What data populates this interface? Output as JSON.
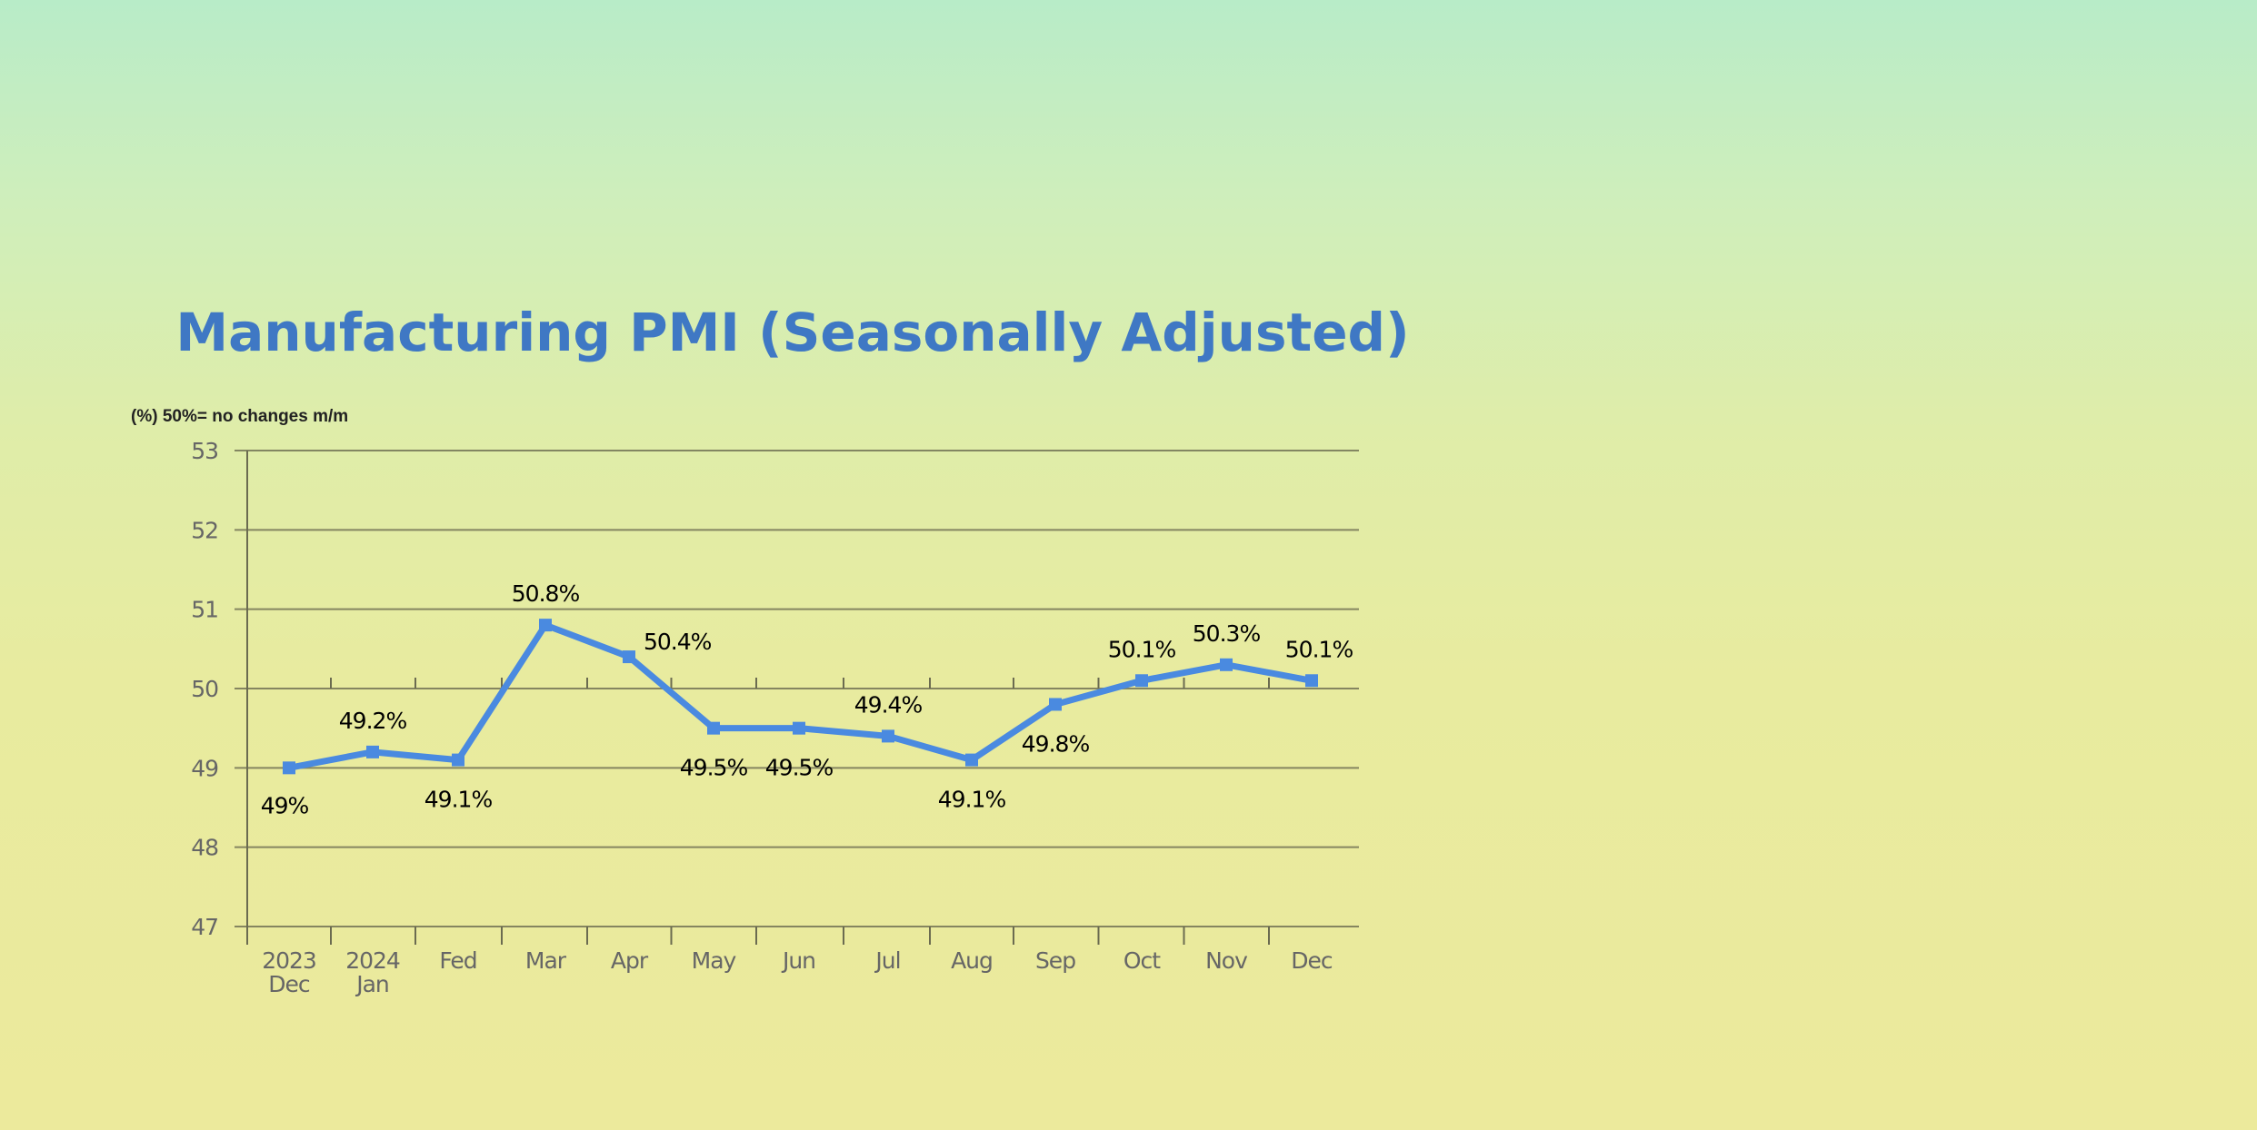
{
  "chart_data": {
    "type": "line",
    "title": "Manufacturing PMI (Seasonally Adjusted)",
    "ylabel": "(%) 50%= no changes m/m",
    "xlabel": "",
    "ylim": [
      47,
      53
    ],
    "yticks": [
      "47",
      "48",
      "49",
      "50",
      "51",
      "52",
      "53"
    ],
    "grid": true,
    "categories": [
      [
        "2023",
        "Dec"
      ],
      [
        "2024",
        "Jan"
      ],
      [
        "Fed"
      ],
      [
        "Mar"
      ],
      [
        "Apr"
      ],
      [
        "May"
      ],
      [
        "Jun"
      ],
      [
        "Jul"
      ],
      [
        "Aug"
      ],
      [
        "Sep"
      ],
      [
        "Oct"
      ],
      [
        "Nov"
      ],
      [
        "Dec"
      ]
    ],
    "series": [
      {
        "name": "Manufacturing PMI",
        "values": [
          49.0,
          49.2,
          49.1,
          50.8,
          50.4,
          49.5,
          49.5,
          49.4,
          49.1,
          49.8,
          50.1,
          50.3,
          50.1
        ],
        "labels": [
          "49%",
          "49.2%",
          "49.1%",
          "50.8%",
          "50.4%",
          "49.5%",
          "49.5%",
          "49.4%",
          "49.1%",
          "49.8%",
          "50.1%",
          "50.3%",
          "50.1%"
        ],
        "color": "#4a8ae0"
      }
    ],
    "colors": {
      "title": "#3f78c4",
      "grid": "#6b6b50",
      "line": "#4a8ae0"
    }
  }
}
